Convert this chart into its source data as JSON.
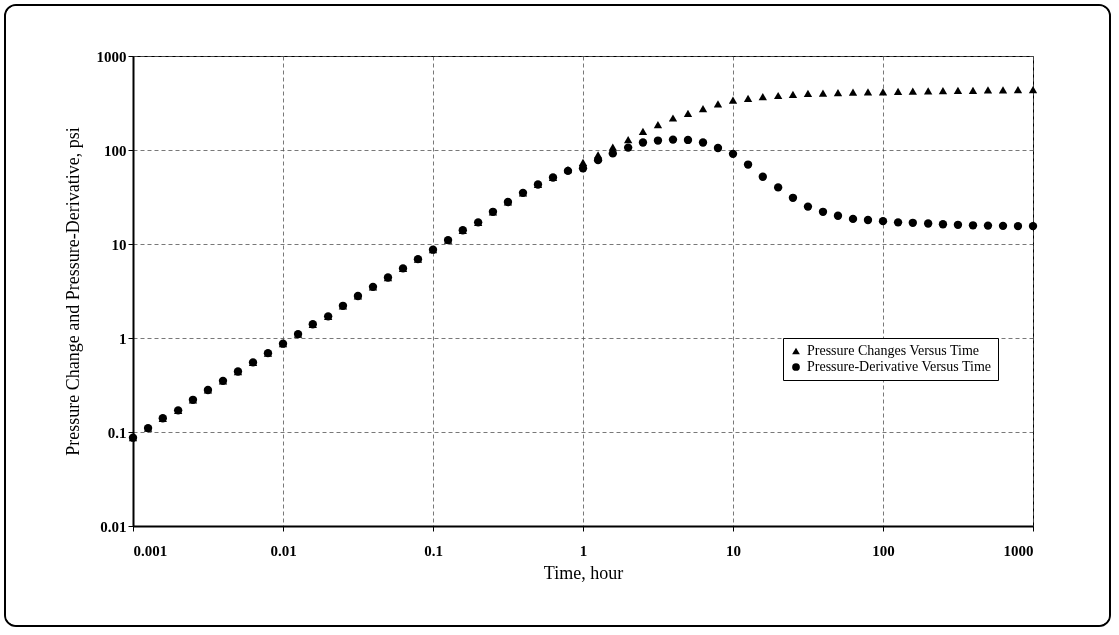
{
  "chart_data": {
    "type": "scatter",
    "xlabel": "Time, hour",
    "ylabel": "Pressure Change and Pressure-Derivative, psi",
    "log": "xy",
    "grid": true,
    "legend": "right",
    "xlim": [
      0.001,
      1000
    ],
    "xticks": [
      0.001,
      0.01,
      0.1,
      1,
      10,
      100,
      1000
    ],
    "ylim": [
      0.01,
      1000
    ],
    "yticks": [
      0.01,
      0.1,
      1,
      10,
      100,
      1000
    ],
    "x": [
      0.001,
      0.00126,
      0.00158,
      0.002,
      0.00251,
      0.00316,
      0.00398,
      0.00501,
      0.00631,
      0.00794,
      0.01,
      0.0126,
      0.0158,
      0.02,
      0.0251,
      0.0316,
      0.0398,
      0.0501,
      0.0631,
      0.0794,
      0.1,
      0.126,
      0.158,
      0.2,
      0.251,
      0.316,
      0.398,
      0.501,
      0.631,
      0.794,
      1,
      1.26,
      1.58,
      2,
      2.51,
      3.16,
      3.98,
      5.01,
      6.31,
      7.94,
      10,
      12.6,
      15.8,
      20,
      25.1,
      31.6,
      39.8,
      50.1,
      63.1,
      79.4,
      100,
      126,
      158,
      200,
      251,
      316,
      398,
      501,
      631,
      794,
      1000
    ],
    "series": [
      {
        "name": "Pressure Changes Versus Time",
        "color": "#000000",
        "marker": "triangle",
        "values": [
          0.087,
          0.11,
          0.14,
          0.17,
          0.22,
          0.28,
          0.35,
          0.44,
          0.55,
          0.69,
          0.87,
          1.1,
          1.4,
          1.7,
          2.2,
          2.8,
          3.5,
          4.4,
          5.5,
          6.9,
          8.7,
          11,
          14,
          17,
          22,
          28,
          35,
          43,
          51,
          62,
          74,
          89,
          107,
          129,
          158,
          186,
          219,
          245,
          275,
          309,
          339,
          355,
          370,
          380,
          390,
          400,
          403,
          407,
          412,
          415,
          415,
          420,
          422,
          425,
          427,
          430,
          432,
          435,
          437,
          440,
          440
        ]
      },
      {
        "name": "Pressure-Derivative Versus Time",
        "color": "#000000",
        "marker": "circle",
        "values": [
          0.087,
          0.11,
          0.14,
          0.17,
          0.22,
          0.28,
          0.35,
          0.44,
          0.55,
          0.69,
          0.87,
          1.1,
          1.4,
          1.7,
          2.2,
          2.8,
          3.5,
          4.4,
          5.5,
          6.9,
          8.7,
          11,
          14,
          17,
          22,
          28,
          35,
          43,
          51,
          60,
          64,
          78,
          92,
          106,
          120,
          126,
          129,
          128,
          120,
          105,
          91,
          70,
          52,
          40,
          31,
          25,
          22,
          20,
          18.5,
          18,
          17.5,
          17,
          16.8,
          16.5,
          16.2,
          16,
          15.8,
          15.7,
          15.6,
          15.5,
          15.5
        ]
      }
    ]
  }
}
